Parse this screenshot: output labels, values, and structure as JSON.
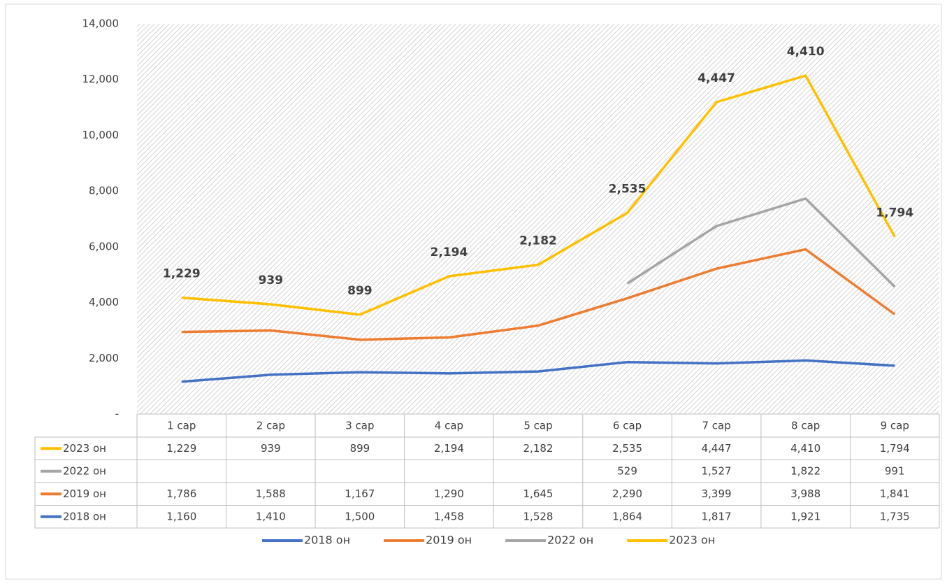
{
  "chart_data": {
    "type": "line",
    "stacked": true,
    "categories": [
      "1 сар",
      "2 сар",
      "3 сар",
      "4 сар",
      "5 сар",
      "6 сар",
      "7 сар",
      "8 сар",
      "9 сар"
    ],
    "series": [
      {
        "name": "2018 он",
        "color": "#4472c4",
        "values": [
          1160,
          1410,
          1500,
          1458,
          1528,
          1864,
          1817,
          1921,
          1735
        ],
        "value_labels": [
          "1,160",
          "1,410",
          "1,500",
          "1,458",
          "1,528",
          "1,864",
          "1,817",
          "1,921",
          "1,735"
        ]
      },
      {
        "name": "2019 он",
        "color": "#ed7d31",
        "values": [
          1786,
          1588,
          1167,
          1290,
          1645,
          2290,
          3399,
          3988,
          1841
        ],
        "value_labels": [
          "1,786",
          "1,588",
          "1,167",
          "1,290",
          "1,645",
          "2,290",
          "3,399",
          "3,988",
          "1,841"
        ]
      },
      {
        "name": "2022 он",
        "color": "#a5a5a5",
        "values": [
          null,
          null,
          null,
          null,
          null,
          529,
          1527,
          1822,
          991
        ],
        "value_labels": [
          null,
          null,
          null,
          null,
          null,
          "529",
          "1,527",
          "1,822",
          "991"
        ]
      },
      {
        "name": "2023 он",
        "color": "#ffc000",
        "values": [
          1229,
          939,
          899,
          2194,
          2182,
          2535,
          4447,
          4410,
          1794
        ],
        "value_labels": [
          "1,229",
          "939",
          "899",
          "2,194",
          "2,182",
          "2,535",
          "4,447",
          "4,410",
          "1,794"
        ],
        "data_labels": true
      }
    ],
    "ylim": [
      0,
      14000
    ],
    "yticks": [
      {
        "value": 0,
        "label": "-"
      },
      {
        "value": 2000,
        "label": "2,000"
      },
      {
        "value": 4000,
        "label": "4,000"
      },
      {
        "value": 6000,
        "label": "6,000"
      },
      {
        "value": 8000,
        "label": "8,000"
      },
      {
        "value": 10000,
        "label": "10,000"
      },
      {
        "value": 12000,
        "label": "12,000"
      },
      {
        "value": 14000,
        "label": "14,000"
      }
    ],
    "data_table": true,
    "legend": "bottom"
  }
}
